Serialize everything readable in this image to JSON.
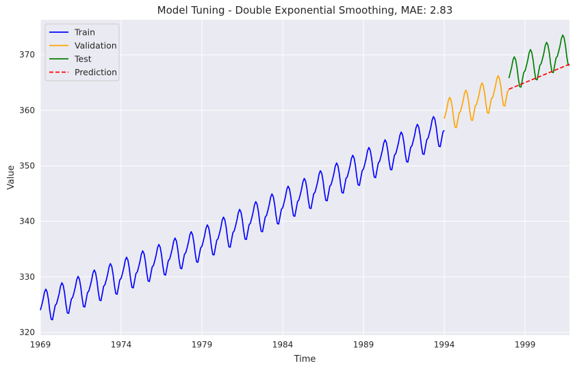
{
  "chart_data": {
    "type": "line",
    "title": "Model Tuning - Double Exponential Smoothing, MAE: 2.83",
    "xlabel": "Time",
    "ylabel": "Value",
    "xlim": [
      1969,
      2001.75
    ],
    "ylim": [
      319.5,
      376.3
    ],
    "x_ticks": [
      1969,
      1974,
      1979,
      1984,
      1989,
      1994,
      1999
    ],
    "x_tick_labels": [
      "1969",
      "1974",
      "1979",
      "1984",
      "1989",
      "1994",
      "1999"
    ],
    "y_ticks": [
      320,
      330,
      340,
      350,
      360,
      370
    ],
    "y_tick_labels": [
      "320",
      "330",
      "340",
      "350",
      "360",
      "370"
    ],
    "grid": true,
    "legend_position": "top-left",
    "colors": {
      "background": "#eaeaf2",
      "grid": "#ffffff",
      "train": "#0000ff",
      "validation": "#ffa500",
      "test": "#008000",
      "prediction": "#ff0000"
    },
    "seasonal_offsets": [
      -0.2,
      0.6,
      1.5,
      2.7,
      3.2,
      2.6,
      1.1,
      -1.0,
      -2.6,
      -2.8,
      -1.6,
      -0.4
    ],
    "series": [
      {
        "name": "Train",
        "color": "#0000ff",
        "style": "solid",
        "x_start": 1969.0,
        "monthly": true,
        "trend_points": [
          [
            1969,
            324.2
          ],
          [
            1979,
            335.7
          ],
          [
            1994,
            356.6
          ]
        ]
      },
      {
        "name": "Validation",
        "color": "#ffa500",
        "style": "solid",
        "x_start": 1994.0,
        "monthly": true,
        "trend_points": [
          [
            1994,
            358.7
          ],
          [
            1998,
            363.9
          ]
        ]
      },
      {
        "name": "Test",
        "color": "#008000",
        "style": "solid",
        "x_start": 1998.0,
        "monthly": true,
        "trend_points": [
          [
            1998,
            366.0
          ],
          [
            2001.75,
            370.9
          ]
        ]
      },
      {
        "name": "Prediction",
        "color": "#ff0000",
        "style": "dashed",
        "points": [
          [
            1998.0,
            363.8
          ],
          [
            2001.75,
            368.3
          ]
        ]
      }
    ]
  }
}
